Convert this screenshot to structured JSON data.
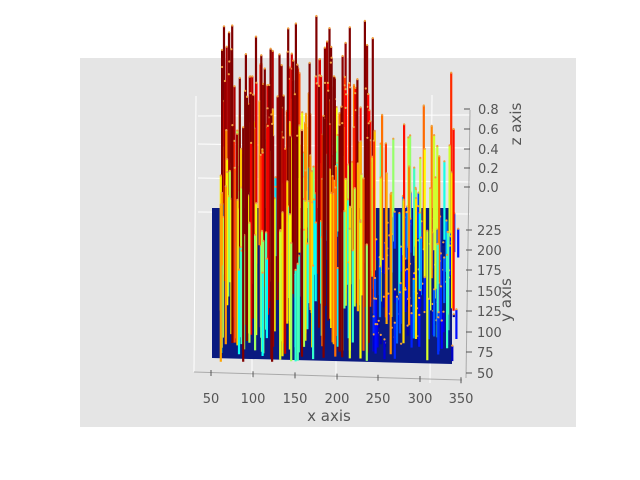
{
  "chart_data": {
    "type": "bar3d",
    "title": "",
    "xlabel": "x axis",
    "ylabel": "y axis",
    "zlabel": "z axis",
    "x_ticks": [
      "50",
      "100",
      "150",
      "200",
      "250",
      "300",
      "350"
    ],
    "y_ticks": [
      "50",
      "75",
      "100",
      "125",
      "150",
      "175",
      "200",
      "225"
    ],
    "z_ticks": [
      "0.0",
      "0.2",
      "0.4",
      "0.6",
      "0.8"
    ],
    "xlim": [
      40,
      350
    ],
    "ylim": [
      50,
      250
    ],
    "zlim": [
      0,
      0.85
    ],
    "colormap": "jet",
    "grid": true,
    "background": "#e5e5e5",
    "panel_color": "#e3e3e3",
    "floor_color": "#0a1a80",
    "description_values": "dense field of thin vertical bars; tall dark-red bars concentrated at x 50-240, sparser mixed-height bars at x 240-340"
  }
}
